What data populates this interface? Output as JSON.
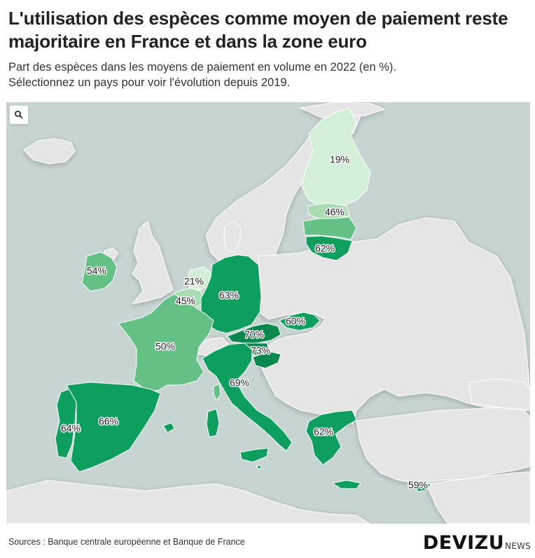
{
  "header": {
    "title": "L'utilisation des espèces comme moyen de paiement reste majoritaire en France et dans la zone euro",
    "subtitle_line1": "Part des espèces dans les moyens de paiement en volume en 2022 (en %).",
    "subtitle_line2": "Sélectionnez un pays pour voir l'évolution depuis 2019."
  },
  "map": {
    "zoom_icon": "search-icon",
    "colors": {
      "sea": "#c6d4d2",
      "non_euro": "#e5e5e5",
      "shade_20": "#d4efd7",
      "shade_45": "#a9dcb0",
      "shade_55": "#64c084",
      "shade_65": "#0e9f5f",
      "shade_70": "#08884c"
    },
    "countries": [
      {
        "id": "finland",
        "label": "19%",
        "value": 19
      },
      {
        "id": "estonia",
        "label": "46%",
        "value": 46
      },
      {
        "id": "latvia",
        "label": "",
        "value": null
      },
      {
        "id": "lithuania",
        "label": "62%",
        "value": 62
      },
      {
        "id": "ireland",
        "label": "54%",
        "value": 54
      },
      {
        "id": "netherlands",
        "label": "21%",
        "value": 21
      },
      {
        "id": "belgium",
        "label": "45%",
        "value": 45
      },
      {
        "id": "germany",
        "label": "63%",
        "value": 63
      },
      {
        "id": "slovakia",
        "label": "60%",
        "value": 60
      },
      {
        "id": "austria",
        "label": "70%",
        "value": 70
      },
      {
        "id": "slovenia",
        "label": "73%",
        "value": 73
      },
      {
        "id": "france",
        "label": "50%",
        "value": 50
      },
      {
        "id": "italy",
        "label": "69%",
        "value": 69
      },
      {
        "id": "portugal",
        "label": "64%",
        "value": 64
      },
      {
        "id": "spain",
        "label": "66%",
        "value": 66
      },
      {
        "id": "greece",
        "label": "62%",
        "value": 62
      },
      {
        "id": "cyprus",
        "label": "59%",
        "value": 59
      }
    ]
  },
  "footer": {
    "sources": "Sources : Banque centrale européenne et Banque de France",
    "logo_main": "DEVIZU",
    "logo_sub": "NEWS"
  }
}
